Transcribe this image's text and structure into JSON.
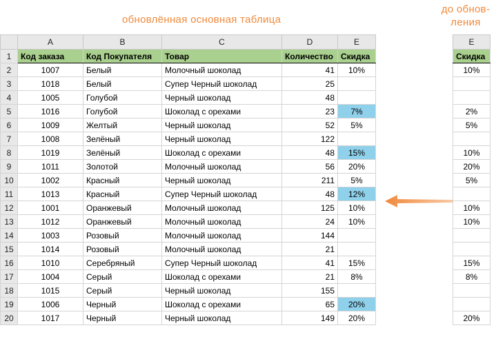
{
  "captions": {
    "main": "обновлённая основная таблица",
    "side_line1": "до обнов-",
    "side_line2": "ления"
  },
  "colors": {
    "caption": "#f08a3c",
    "header_fill": "#a9d08e",
    "highlight": "#8fd0ea",
    "arrow": "#f4a46e"
  },
  "main_table": {
    "column_letters": [
      "A",
      "B",
      "C",
      "D",
      "E"
    ],
    "headers": [
      "Код заказа",
      "Код Покупателя",
      "Товар",
      "Количество",
      "Скидка"
    ],
    "rows": [
      {
        "n": "2",
        "id": "1007",
        "customer": "Белый",
        "product": "Молочный шоколад",
        "qty": "41",
        "disc": "10%"
      },
      {
        "n": "3",
        "id": "1018",
        "customer": "Белый",
        "product": "Супер Черный шоколад",
        "qty": "25",
        "disc": ""
      },
      {
        "n": "4",
        "id": "1005",
        "customer": "Голубой",
        "product": "Черный шоколад",
        "qty": "48",
        "disc": ""
      },
      {
        "n": "5",
        "id": "1016",
        "customer": "Голубой",
        "product": "Шоколад с орехами",
        "qty": "23",
        "disc": "7%",
        "hl": true
      },
      {
        "n": "6",
        "id": "1009",
        "customer": "Желтый",
        "product": "Черный шоколад",
        "qty": "52",
        "disc": "5%"
      },
      {
        "n": "7",
        "id": "1008",
        "customer": "Зелёный",
        "product": "Черный шоколад",
        "qty": "122",
        "disc": ""
      },
      {
        "n": "8",
        "id": "1019",
        "customer": "Зелёный",
        "product": "Шоколад с орехами",
        "qty": "48",
        "disc": "15%",
        "hl": true
      },
      {
        "n": "9",
        "id": "1011",
        "customer": "Золотой",
        "product": "Молочный шоколад",
        "qty": "56",
        "disc": "20%"
      },
      {
        "n": "10",
        "id": "1002",
        "customer": "Красный",
        "product": "Черный шоколад",
        "qty": "211",
        "disc": "5%"
      },
      {
        "n": "11",
        "id": "1013",
        "customer": "Красный",
        "product": "Супер Черный шоколад",
        "qty": "48",
        "disc": "12%",
        "hl": true
      },
      {
        "n": "12",
        "id": "1001",
        "customer": "Оранжевый",
        "product": "Молочный шоколад",
        "qty": "125",
        "disc": "10%"
      },
      {
        "n": "13",
        "id": "1012",
        "customer": "Оранжевый",
        "product": "Молочный шоколад",
        "qty": "24",
        "disc": "10%"
      },
      {
        "n": "14",
        "id": "1003",
        "customer": "Розовый",
        "product": "Молочный шоколад",
        "qty": "144",
        "disc": ""
      },
      {
        "n": "15",
        "id": "1014",
        "customer": "Розовый",
        "product": "Молочный шоколад",
        "qty": "21",
        "disc": ""
      },
      {
        "n": "16",
        "id": "1010",
        "customer": "Серебряный",
        "product": "Супер Черный шоколад",
        "qty": "41",
        "disc": "15%"
      },
      {
        "n": "17",
        "id": "1004",
        "customer": "Серый",
        "product": "Шоколад с орехами",
        "qty": "21",
        "disc": "8%"
      },
      {
        "n": "18",
        "id": "1015",
        "customer": "Серый",
        "product": "Черный шоколад",
        "qty": "155",
        "disc": ""
      },
      {
        "n": "19",
        "id": "1006",
        "customer": "Черный",
        "product": "Шоколад с орехами",
        "qty": "65",
        "disc": "20%",
        "hl": true
      },
      {
        "n": "20",
        "id": "1017",
        "customer": "Черный",
        "product": "Черный шоколад",
        "qty": "149",
        "disc": "20%"
      }
    ]
  },
  "side_table": {
    "column_letter": "E",
    "header": "Скидка",
    "values": [
      "10%",
      "",
      "",
      "2%",
      "5%",
      "",
      "10%",
      "20%",
      "5%",
      "",
      "10%",
      "10%",
      "",
      "",
      "15%",
      "8%",
      "",
      "",
      "20%"
    ]
  }
}
